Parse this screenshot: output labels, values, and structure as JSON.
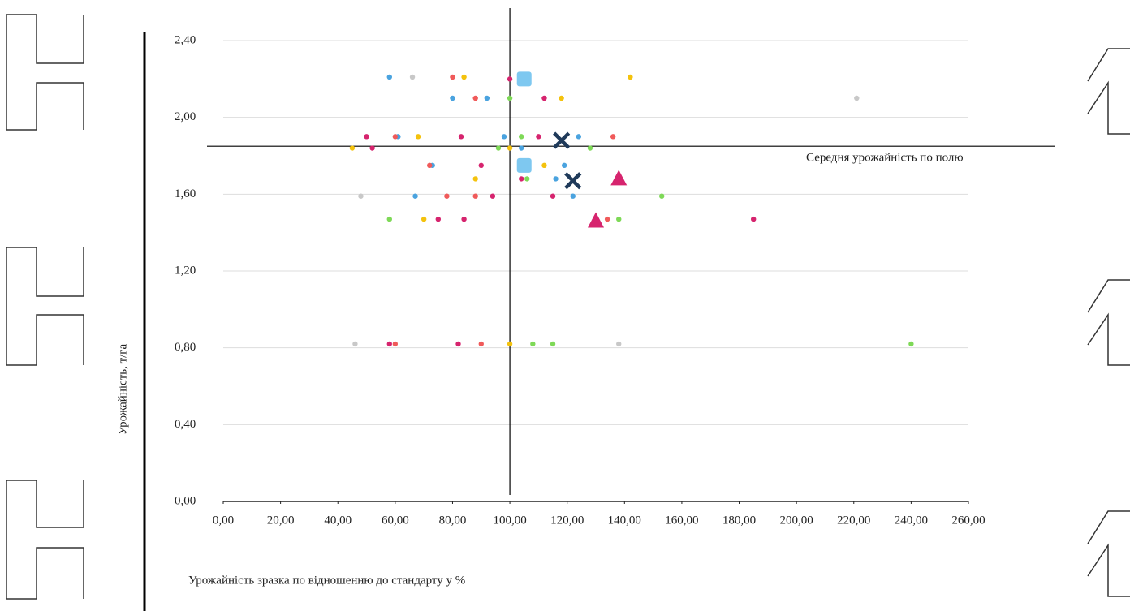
{
  "chart_data": {
    "type": "scatter",
    "x_label": "Урожайність зразка по відношенню до стандарту у %",
    "y_label": "Урожайність, т/га",
    "annotation": "Середня урожайність по полю",
    "reference_x": 100,
    "reference_y": 1.85,
    "xlim": [
      0,
      260
    ],
    "ylim": [
      0,
      2.4
    ],
    "xticks": [
      {
        "value": 0,
        "label": "0,00"
      },
      {
        "value": 20,
        "label": "20,00"
      },
      {
        "value": 40,
        "label": "40,00"
      },
      {
        "value": 60,
        "label": "60,00"
      },
      {
        "value": 80,
        "label": "80,00"
      },
      {
        "value": 100,
        "label": "100,00"
      },
      {
        "value": 120,
        "label": "120,00"
      },
      {
        "value": 140,
        "label": "140,00"
      },
      {
        "value": 160,
        "label": "160,00"
      },
      {
        "value": 180,
        "label": "180,00"
      },
      {
        "value": 200,
        "label": "200,00"
      },
      {
        "value": 220,
        "label": "220,00"
      },
      {
        "value": 240,
        "label": "240,00"
      },
      {
        "value": 260,
        "label": "260,00"
      }
    ],
    "yticks": [
      {
        "value": 0,
        "label": "0,00"
      },
      {
        "value": 0.4,
        "label": "0,40"
      },
      {
        "value": 0.8,
        "label": "0,80"
      },
      {
        "value": 1.2,
        "label": "1,20"
      },
      {
        "value": 1.6,
        "label": "1,60"
      },
      {
        "value": 2.0,
        "label": "2,00"
      },
      {
        "value": 2.4,
        "label": "2,40"
      }
    ],
    "grid": true,
    "series": [
      {
        "color": "#4aa3df",
        "marker": "circle",
        "x": [
          58,
          80,
          92,
          61,
          98,
          124,
          73,
          119,
          116,
          67,
          122,
          104
        ],
        "y": [
          2.21,
          2.1,
          2.1,
          1.9,
          1.9,
          1.9,
          1.75,
          1.75,
          1.68,
          1.59,
          1.59,
          1.84
        ]
      },
      {
        "color": "#d6246e",
        "marker": "circle",
        "x": [
          100,
          112,
          50,
          83,
          110,
          52,
          90,
          104,
          94,
          115,
          75,
          84,
          185,
          58,
          82
        ],
        "y": [
          2.2,
          2.1,
          1.9,
          1.9,
          1.9,
          1.84,
          1.75,
          1.68,
          1.59,
          1.59,
          1.47,
          1.47,
          1.47,
          0.82,
          0.82
        ]
      },
      {
        "color": "#f4c20d",
        "marker": "circle",
        "x": [
          84,
          142,
          118,
          68,
          45,
          100,
          112,
          88,
          70,
          100
        ],
        "y": [
          2.21,
          2.21,
          2.1,
          1.9,
          1.84,
          1.84,
          1.75,
          1.68,
          1.47,
          0.82
        ]
      },
      {
        "color": "#7ed957",
        "marker": "circle",
        "x": [
          100,
          104,
          96,
          128,
          106,
          153,
          58,
          138,
          115,
          240,
          108
        ],
        "y": [
          2.1,
          1.9,
          1.84,
          1.84,
          1.68,
          1.59,
          1.47,
          1.47,
          0.82,
          0.82,
          0.82
        ]
      },
      {
        "color": "#f05a5a",
        "marker": "circle",
        "x": [
          80,
          88,
          60,
          136,
          72,
          78,
          88,
          138,
          60,
          90,
          134
        ],
        "y": [
          2.21,
          2.1,
          1.9,
          1.9,
          1.75,
          1.59,
          1.59,
          1.68,
          0.82,
          0.82,
          1.47
        ]
      },
      {
        "color": "#c8c8c8",
        "marker": "circle",
        "x": [
          66,
          221,
          46,
          138,
          48
        ],
        "y": [
          2.21,
          2.1,
          0.82,
          0.82,
          1.59
        ]
      },
      {
        "color": "#7ec8f0",
        "marker": "square",
        "x": [
          105,
          105
        ],
        "y": [
          2.2,
          1.75
        ]
      },
      {
        "color": "#1f3a5a",
        "marker": "x",
        "x": [
          118,
          122
        ],
        "y": [
          1.88,
          1.67
        ]
      },
      {
        "color": "#d6246e",
        "marker": "triangle",
        "x": [
          138,
          130
        ],
        "y": [
          1.68,
          1.46
        ]
      }
    ]
  }
}
